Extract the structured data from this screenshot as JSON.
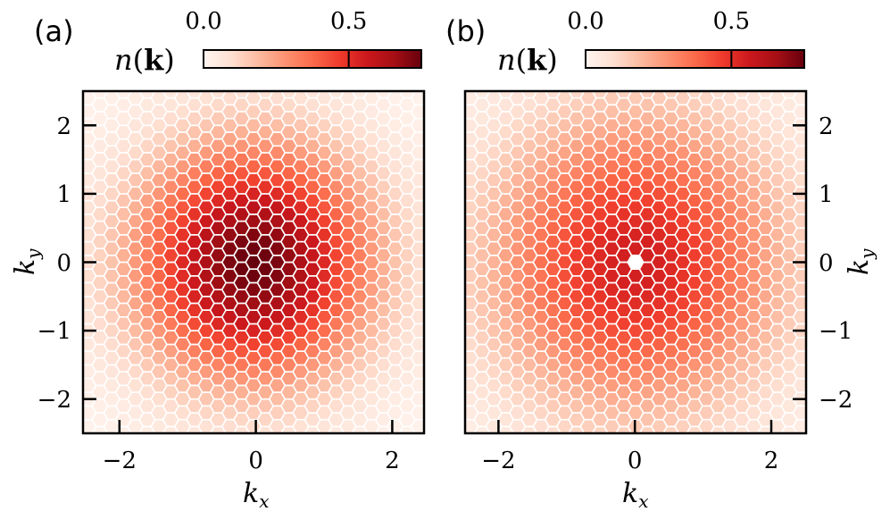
{
  "chart_data": [
    {
      "type": "heatmap",
      "panel_label": "(a)",
      "mark": "hexagonal-lattice",
      "colormap": "Reds",
      "colorbar": {
        "label": "n(k)",
        "label_parts": {
          "func": "n",
          "arg": "k"
        },
        "range": [
          0.0,
          0.75
        ],
        "ticks": [
          0.0,
          0.5
        ],
        "tick_labels": [
          "0.0",
          "0.5"
        ],
        "marker_line": 0.5
      },
      "xlabel": "k_x",
      "ylabel": "k_y",
      "xlim": [
        -2.5,
        2.5
      ],
      "ylim": [
        -2.5,
        2.5
      ],
      "xticks": [
        -2,
        0,
        2
      ],
      "xtick_labels": [
        "−2",
        "0",
        "2"
      ],
      "yticks": [
        -2,
        -1,
        0,
        1,
        2
      ],
      "ytick_labels": [
        "−2",
        "−1",
        "0",
        "1",
        "2"
      ],
      "yaxis_side": "left",
      "distribution": {
        "form": "gaussian",
        "peak": 0.75,
        "center": [
          0,
          0
        ],
        "width": 1.7,
        "hole_radius": 0
      }
    },
    {
      "type": "heatmap",
      "panel_label": "(b)",
      "mark": "hexagonal-lattice",
      "colormap": "Reds",
      "colorbar": {
        "label": "n(k)",
        "label_parts": {
          "func": "n",
          "arg": "k"
        },
        "range": [
          0.0,
          0.75
        ],
        "ticks": [
          0.0,
          0.5
        ],
        "tick_labels": [
          "0.0",
          "0.5"
        ],
        "marker_line": 0.5
      },
      "xlabel": "k_x",
      "ylabel": "k_y",
      "xlim": [
        -2.5,
        2.5
      ],
      "ylim": [
        -2.5,
        2.5
      ],
      "xticks": [
        -2,
        0,
        2
      ],
      "xtick_labels": [
        "−2",
        "0",
        "2"
      ],
      "yticks": [
        -2,
        -1,
        0,
        1,
        2
      ],
      "ytick_labels": [
        "−2",
        "−1",
        "0",
        "1",
        "2"
      ],
      "yaxis_side": "right",
      "distribution": {
        "form": "gaussian",
        "peak": 0.55,
        "center": [
          0,
          0
        ],
        "width": 2.1,
        "hole_radius": 0.12
      }
    }
  ]
}
